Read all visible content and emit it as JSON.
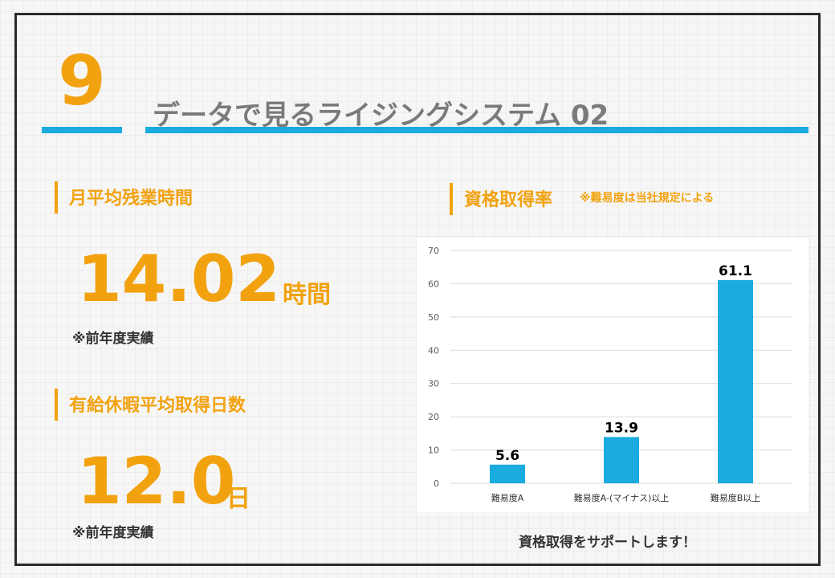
{
  "slide": {
    "number": "9",
    "title": "データで見るライジングシステム 02"
  },
  "overtime": {
    "heading": "月平均残業時間",
    "value": "14.02",
    "unit": "時間",
    "note": "※前年度実績"
  },
  "leave": {
    "heading": "有給休暇平均取得日数",
    "value": "12.0",
    "unit": "日",
    "note": "※前年度実績"
  },
  "qualification": {
    "heading": "資格取得率",
    "note": "※難易度は当社規定による",
    "caption": "資格取得をサポートします！"
  },
  "colors": {
    "accent": "#f2a20f",
    "bar": "#1aabdf",
    "frame": "#2b2b2b",
    "title": "#7a7a7a"
  },
  "chart_data": {
    "type": "bar",
    "categories": [
      "難易度A",
      "難易度A-(マイナス)以上",
      "難易度B以上"
    ],
    "values": [
      5.6,
      13.9,
      61.1
    ],
    "data_labels": [
      "5.6",
      "13.9",
      "61.1"
    ],
    "title": "",
    "xlabel": "",
    "ylabel": "",
    "ylim": [
      0,
      70
    ],
    "yticks": [
      0,
      10,
      20,
      30,
      40,
      50,
      60,
      70
    ],
    "grid": true,
    "legend": "none"
  }
}
